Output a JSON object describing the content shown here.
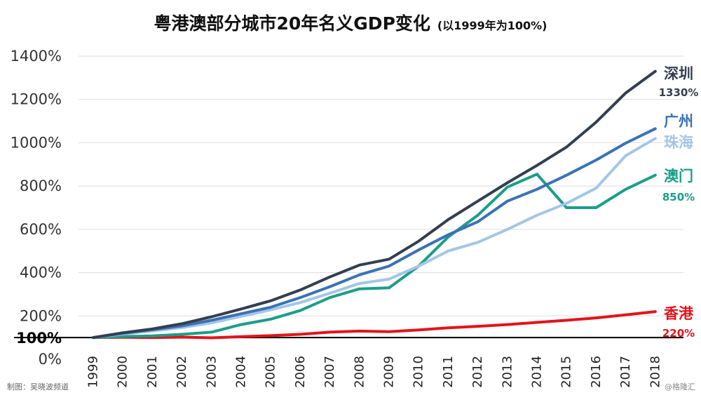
{
  "header": {
    "title": "粤港澳部分城市20年名义GDP变化",
    "subtitle": "(以1999年为100%)"
  },
  "credits": {
    "left": "制图：吴晓波频道",
    "right": "@格隆汇"
  },
  "chart_data": {
    "type": "line",
    "title": "粤港澳部分城市20年名义GDP变化",
    "subtitle": "(以1999年为100%)",
    "xlabel": "",
    "ylabel": "",
    "x": [
      "1999",
      "2000",
      "2001",
      "2002",
      "2003",
      "2004",
      "2005",
      "2006",
      "2007",
      "2008",
      "2009",
      "2010",
      "2011",
      "2012",
      "2013",
      "2014",
      "2015",
      "2016",
      "2017",
      "2018"
    ],
    "y_ticks": [
      0,
      200,
      400,
      600,
      800,
      1000,
      1200,
      1400
    ],
    "y_tick_labels": [
      "0%",
      "200%",
      "400%",
      "600%",
      "800%",
      "1000%",
      "1200%",
      "1400%"
    ],
    "baseline": {
      "value": 100,
      "label": "100%"
    },
    "ylim": [
      0,
      1450
    ],
    "grid": true,
    "legend": "right-side direct labels",
    "series": [
      {
        "name": "深圳",
        "end_label": "1330%",
        "color": "#333f50",
        "values": [
          100,
          122,
          140,
          164,
          196,
          232,
          270,
          320,
          380,
          435,
          462,
          545,
          645,
          730,
          815,
          895,
          980,
          1095,
          1230,
          1330
        ]
      },
      {
        "name": "广州",
        "end_label": "",
        "color": "#3a72b5",
        "values": [
          100,
          120,
          136,
          154,
          180,
          210,
          240,
          285,
          335,
          390,
          430,
          505,
          575,
          635,
          730,
          785,
          850,
          920,
          998,
          1065
        ]
      },
      {
        "name": "珠海",
        "end_label": "",
        "color": "#a4c6e6",
        "values": [
          100,
          116,
          131,
          146,
          168,
          198,
          228,
          262,
          305,
          350,
          370,
          430,
          500,
          540,
          600,
          665,
          720,
          790,
          940,
          1020
        ]
      },
      {
        "name": "澳门",
        "end_label": "850%",
        "color": "#1b9e88",
        "values": [
          100,
          105,
          108,
          115,
          125,
          160,
          185,
          225,
          285,
          325,
          330,
          430,
          565,
          665,
          795,
          855,
          700,
          700,
          785,
          850
        ]
      },
      {
        "name": "香港",
        "end_label": "220%",
        "color": "#e2141b",
        "values": [
          100,
          101,
          100,
          102,
          99,
          104,
          109,
          115,
          125,
          130,
          127,
          135,
          145,
          152,
          160,
          170,
          180,
          191,
          205,
          220
        ]
      }
    ]
  }
}
